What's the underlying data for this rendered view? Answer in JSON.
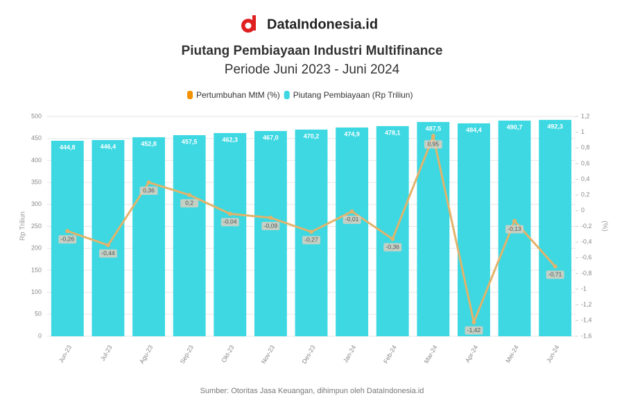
{
  "brand": "DataIndonesia.id",
  "chart_data": {
    "type": "bar",
    "title": "Piutang Pembiayaan Industri Multifinance",
    "subtitle": "Periode Juni 2023 - Juni 2024",
    "y_label": "Rp Triliun",
    "y2_label": "(%)",
    "source": "Sumber: Otoritas Jasa Keuangan, dihimpun oleh DataIndonesia.id",
    "categories": [
      "Jun-23",
      "Jul-23",
      "Agu-23",
      "Sep-23",
      "Okt-23",
      "Nov-23",
      "Des-23",
      "Jan-24",
      "Feb-24",
      "Mar-24",
      "Apr-24",
      "Mei-24",
      "Jun-24"
    ],
    "series": [
      {
        "name": "Pertumbuhan MtM (%)",
        "type": "line",
        "axis": "y2",
        "color": "#f39200",
        "line_color": "#e3b36a",
        "values": [
          -0.26,
          -0.44,
          0.36,
          0.2,
          -0.04,
          -0.09,
          -0.27,
          -0.01,
          -0.36,
          0.95,
          -1.42,
          -0.13,
          -0.71
        ],
        "value_labels": [
          "-0,26",
          "-0,44",
          "0,36",
          "0,2",
          "-0,04",
          "-0,09",
          "-0,27",
          "-0,01",
          "-0,36",
          "0,95",
          "-1,42",
          "-0,13",
          "-0,71"
        ]
      },
      {
        "name": "Piutang Pembiayaan (Rp Triliun)",
        "type": "bar",
        "color": "#3dd8e2",
        "values": [
          444.8,
          446.4,
          452.8,
          457.5,
          462.3,
          467.0,
          470.2,
          474.9,
          478.1,
          487.5,
          484.4,
          490.7,
          492.3
        ],
        "value_labels": [
          "444,8",
          "446,4",
          "452,8",
          "457,5",
          "462,3",
          "467,0",
          "470,2",
          "474,9",
          "478,1",
          "487,5",
          "484,4",
          "490,7",
          "492,3"
        ]
      }
    ],
    "ylim": [
      0,
      500
    ],
    "yticks": [
      0,
      50,
      100,
      150,
      200,
      250,
      300,
      350,
      400,
      450,
      500
    ],
    "y2lim": [
      -1.6,
      1.2
    ],
    "y2ticks": [
      {
        "value": -1.6,
        "label": "-1,6"
      },
      {
        "value": -1.4,
        "label": "-1,4"
      },
      {
        "value": -1.2,
        "label": "-1,2"
      },
      -1,
      {
        "value": -0.8,
        "label": "-0,8"
      },
      {
        "value": -0.6,
        "label": "-0,6"
      },
      {
        "value": -0.4,
        "label": "-0,4"
      },
      {
        "value": -0.2,
        "label": "-0,2"
      },
      0,
      {
        "value": 0.2,
        "label": "0,2"
      },
      {
        "value": 0.4,
        "label": "0,4"
      },
      {
        "value": 0.6,
        "label": "0,6"
      },
      {
        "value": 0.8,
        "label": "0,8"
      },
      1,
      {
        "value": 1.2,
        "label": "1,2"
      }
    ],
    "grid": true,
    "legend": "top"
  }
}
